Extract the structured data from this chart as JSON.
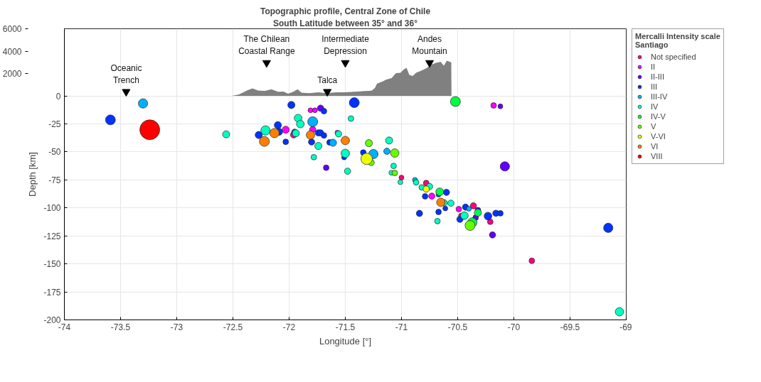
{
  "chart_data": {
    "type": "bubble",
    "title": "Topographic profile, Central Zone of Chile",
    "subtitle": "South Latitude between 35° and 36°",
    "xlabel": "Longitude [°]",
    "ylabel": "Depth [km]",
    "legend_title": "Mercalli Intensity scale\nSantiago",
    "xlim": [
      -74,
      -69
    ],
    "xticks": [
      -74,
      -73.5,
      -73,
      -72.5,
      -72,
      -71.5,
      -71,
      -70.5,
      -70,
      -69.5,
      -69
    ],
    "ylim": [
      -200,
      60
    ],
    "yticks": [
      0,
      -25,
      -50,
      -75,
      -100,
      -125,
      -150,
      -175,
      -200
    ],
    "y2lim": [
      -20000,
      6000
    ],
    "y2ticks": [
      2000,
      4000,
      6000
    ],
    "grid": true,
    "legend": "top right",
    "annotations": [
      {
        "text": "Oceanic\nTrench",
        "x": -73.45,
        "y": 3.8
      },
      {
        "text": "The Chilean\nCoastal Range",
        "x": -72.2,
        "y": 29.6
      },
      {
        "text": "Talca",
        "x": -71.66,
        "y": 3.8
      },
      {
        "text": "Intermediate\nDepression",
        "x": -71.5,
        "y": 29.6
      },
      {
        "text": "Andes\nMountain",
        "x": -70.75,
        "y": 29.6
      }
    ],
    "series": [
      {
        "type": "area",
        "axis": "y2",
        "color": "#808080",
        "x": [
          -72.51,
          -72.445,
          -72.376,
          -72.326,
          -72.276,
          -72.217,
          -72.157,
          -72.098,
          -72.049,
          -72.009,
          -71.96,
          -71.924,
          -71.89,
          -71.821,
          -71.742,
          -71.662,
          -71.583,
          -71.504,
          -71.425,
          -71.266,
          -71.237,
          -71.217,
          -71.168,
          -71.138,
          -71.088,
          -71.049,
          -71.009,
          -70.979,
          -70.955,
          -70.93,
          -70.9,
          -70.87,
          -70.831,
          -70.781,
          -70.731,
          -70.692,
          -70.652,
          -70.623,
          -70.597,
          -70.557,
          -70.555
        ],
        "values": [
          0,
          140,
          490,
          680,
          490,
          450,
          590,
          370,
          390,
          200,
          390,
          590,
          290,
          250,
          330,
          250,
          330,
          330,
          370,
          470,
          700,
          1100,
          1290,
          1450,
          1590,
          2040,
          2070,
          2370,
          2520,
          1880,
          1780,
          2070,
          2230,
          2470,
          2820,
          2950,
          3050,
          2700,
          3150,
          3010,
          0
        ]
      },
      {
        "name": "Not specified",
        "color": "#ff0080",
        "x": [
          -71.96,
          -71.0,
          -70.78,
          -70.36,
          -70.47,
          -70.21,
          -69.84
        ],
        "values": [
          -34.8,
          -72.9,
          -77.8,
          -98.1,
          -106.9,
          -112.4,
          -147.2
        ],
        "sizes": [
          0.1,
          0.06,
          0.08,
          0.1,
          0.06,
          0.08,
          0.08
        ]
      },
      {
        "name": "II",
        "color": "#ff00ff",
        "x": [
          -71.81,
          -71.77,
          -72.03,
          -71.79,
          -71.57,
          -70.73,
          -70.49,
          -70.18
        ],
        "values": [
          -12.8,
          -12.8,
          -30.2,
          -30.0,
          -32.8,
          -89.5,
          -101.1,
          -8.5
        ],
        "sizes": [
          0.06,
          0.06,
          0.13,
          0.1,
          0.06,
          0.1,
          0.08,
          0.08
        ]
      },
      {
        "name": "II-III",
        "color": "#6000ff",
        "x": [
          -71.72,
          -71.67,
          -70.32,
          -70.34,
          -70.08,
          -70.19,
          -70.12
        ],
        "values": [
          -10.9,
          -64.1,
          -102.0,
          -108.7,
          -62.9,
          -124.1,
          -9.3
        ],
        "sizes": [
          0.1,
          0.08,
          0.08,
          0.08,
          0.22,
          0.1,
          0.06
        ]
      },
      {
        "name": "III",
        "color": "#0033ff",
        "x": [
          -73.59,
          -71.98,
          -71.69,
          -72.1,
          -72.09,
          -72.27,
          -72.03,
          -71.95,
          -71.74,
          -71.72,
          -71.69,
          -71.8,
          -71.64,
          -71.51,
          -71.42,
          -71.34,
          -70.79,
          -70.67,
          -70.6,
          -70.61,
          -70.67,
          -70.84,
          -70.43,
          -70.48,
          -70.23,
          -70.16,
          -70.12,
          -69.16
        ],
        "values": [
          -21.4,
          -8.1,
          -13.6,
          -26.1,
          -32.0,
          -34.9,
          -41.0,
          -32.4,
          -33.0,
          -33.0,
          -35.3,
          -41.1,
          -41.5,
          -54.9,
          -6.0,
          -50.5,
          -89.7,
          -88.1,
          -86.1,
          -100.5,
          -103.6,
          -104.9,
          -99.3,
          -110.2,
          -107.3,
          -104.8,
          -104.8,
          -117.8
        ],
        "sizes": [
          0.25,
          0.13,
          0.08,
          0.13,
          0.13,
          0.13,
          0.08,
          0.1,
          0.1,
          0.1,
          0.08,
          0.1,
          0.08,
          0.06,
          0.25,
          0.08,
          0.08,
          0.06,
          0.1,
          0.06,
          0.08,
          0.1,
          0.1,
          0.1,
          0.15,
          0.1,
          0.08,
          0.22
        ]
      },
      {
        "name": "III-IV",
        "color": "#00b0ff",
        "x": [
          -73.3,
          -71.79,
          -71.61,
          -71.25,
          -71.13,
          -70.88,
          -70.4
        ],
        "values": [
          -6.7,
          -23.0,
          -41.8,
          -51.9,
          -49.4,
          -75.0,
          -100.8
        ],
        "sizes": [
          0.22,
          0.25,
          0.13,
          0.22,
          0.1,
          0.06,
          0.06
        ]
      },
      {
        "name": "IV",
        "color": "#00ffc0",
        "x": [
          -72.56,
          -71.92,
          -71.9,
          -72.21,
          -71.94,
          -71.74,
          -71.78,
          -71.48,
          -71.45,
          -71.5,
          -71.56,
          -71.11,
          -71.07,
          -71.09,
          -71.01,
          -70.87,
          -70.82,
          -70.75,
          -70.62,
          -70.56,
          -70.68,
          -70.44,
          -69.06
        ],
        "values": [
          -34.3,
          -19.8,
          -25.1,
          -30.8,
          -33.3,
          -44.7,
          -54.7,
          -67.2,
          -20.2,
          -51.3,
          -33.9,
          -39.8,
          -62.5,
          -68.6,
          -77.0,
          -77.2,
          -81.7,
          -80.9,
          -95.4,
          -95.8,
          -111.8,
          -106.9,
          -192.8
        ],
        "sizes": [
          0.13,
          0.15,
          0.15,
          0.22,
          0.13,
          0.13,
          0.08,
          0.1,
          0.08,
          0.18,
          0.1,
          0.13,
          0.08,
          0.06,
          0.06,
          0.08,
          0.08,
          0.1,
          0.1,
          0.1,
          0.08,
          0.15,
          0.18
        ]
      },
      {
        "name": "IV-V",
        "color": "#00ff40",
        "x": [
          -70.52,
          -70.66,
          -70.32,
          -70.37
        ],
        "values": [
          -5.0,
          -85.6,
          -104.3,
          -113.0
        ],
        "sizes": [
          0.25,
          0.15,
          0.13,
          0.22
        ]
      },
      {
        "name": "V",
        "color": "#66ff00",
        "x": [
          -71.27,
          -71.29,
          -71.06,
          -71.06,
          -70.39
        ],
        "values": [
          -59.4,
          -42.2,
          -51.0,
          -68.8,
          -115.7
        ],
        "sizes": [
          0.1,
          0.13,
          0.18,
          0.08,
          0.25
        ]
      },
      {
        "name": "V-VI",
        "color": "#eeff00",
        "x": [
          -71.31,
          -70.78
        ],
        "values": [
          -56.2,
          -83.2
        ],
        "sizes": [
          0.33,
          0.1
        ]
      },
      {
        "name": "VI",
        "color": "#ff8000",
        "x": [
          -72.13,
          -72.22,
          -71.81,
          -71.5,
          -70.65
        ],
        "values": [
          -33.2,
          -40.6,
          -34.9,
          -39.8,
          -95.0
        ],
        "sizes": [
          0.22,
          0.25,
          0.18,
          0.18,
          0.18
        ]
      },
      {
        "name": "VIII",
        "color": "#ff0000",
        "x": [
          -73.24
        ],
        "values": [
          -30.2
        ],
        "sizes": [
          1
        ]
      }
    ]
  }
}
